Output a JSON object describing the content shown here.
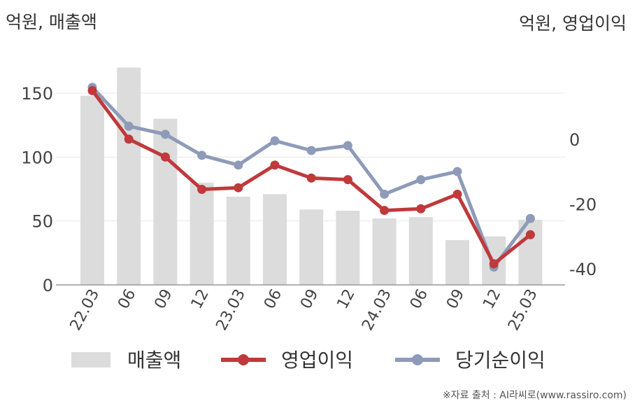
{
  "chart_data": {
    "type": "bar+line",
    "y_left_unit": "억원, 매출액",
    "y_right_unit": "억원, 영업이익",
    "categories": [
      "22.03",
      "06",
      "09",
      "12",
      "23.03",
      "06",
      "09",
      "12",
      "24.03",
      "06",
      "09",
      "12",
      "25.03"
    ],
    "y_left_ticks": [
      "150",
      "100",
      "50",
      "0"
    ],
    "y_right_ticks": [
      "0",
      "-20",
      "-40"
    ],
    "ylim_left": [
      0,
      190
    ],
    "ylim_right": [
      -45,
      30
    ],
    "series": [
      {
        "name": "매출액",
        "type": "bar",
        "axis": "left",
        "color": "#dcdcdc",
        "values": [
          148,
          170,
          130,
          80,
          69,
          71,
          59,
          58,
          52,
          53,
          35,
          38,
          51
        ]
      },
      {
        "name": "영업이익",
        "type": "line",
        "axis": "right",
        "color": "#c0393b",
        "values": [
          15,
          0,
          -5.5,
          -15.5,
          -15,
          -8,
          -12,
          -12.5,
          -22,
          -21.5,
          -17,
          -38.5,
          -29.5
        ]
      },
      {
        "name": "당기순이익",
        "type": "line",
        "axis": "right",
        "color": "#8e9bb8",
        "values": [
          16,
          4,
          1.5,
          -5,
          -8,
          -0.5,
          -3.5,
          -2,
          -17,
          -12.5,
          -10,
          -39.5,
          -24.5
        ]
      }
    ],
    "legend_position": "bottom",
    "grid": true
  },
  "source": "※자료 출처 : AI라씨로(www.rassiro.com)"
}
